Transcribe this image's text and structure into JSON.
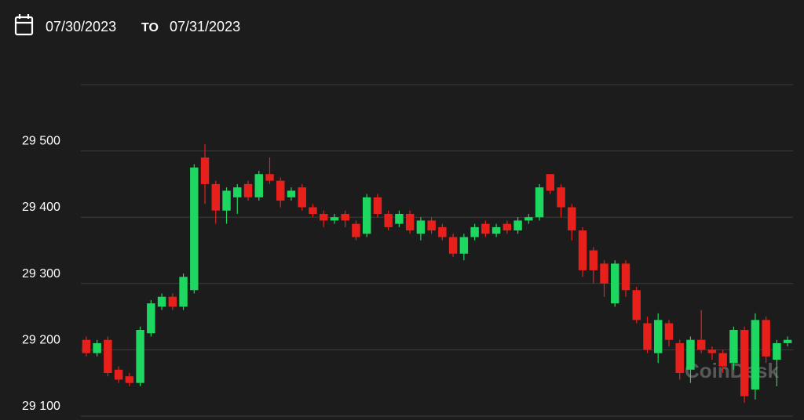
{
  "date_range": {
    "from": "07/30/2023",
    "separator": "TO",
    "to": "07/31/2023"
  },
  "chart_data": {
    "type": "candlestick",
    "watermark": "CoinDesk",
    "up_color": "#1ed760",
    "down_color": "#e8201c",
    "ylim": [
      29100,
      29600
    ],
    "yticks": [
      {
        "value": 29100,
        "label": "29 100"
      },
      {
        "value": 29200,
        "label": "29 200"
      },
      {
        "value": 29300,
        "label": "29 300"
      },
      {
        "value": 29400,
        "label": "29 400"
      },
      {
        "value": 29500,
        "label": "29 500"
      }
    ],
    "grid": true,
    "open": [
      29215,
      29195,
      29215,
      29170,
      29160,
      29150,
      29225,
      29265,
      29280,
      29265,
      29290,
      29490,
      29450,
      29410,
      29430,
      29450,
      29430,
      29465,
      29455,
      29430,
      29445,
      29415,
      29405,
      29395,
      29405,
      29390,
      29375,
      29430,
      29405,
      29390,
      29405,
      29375,
      29395,
      29385,
      29370,
      29345,
      29370,
      29390,
      29375,
      29390,
      29380,
      29395,
      29400,
      29465,
      29445,
      29415,
      29380,
      29350,
      29330,
      29270,
      29330,
      29290,
      29240,
      29195,
      29240,
      29210,
      29170,
      29215,
      29200,
      29195,
      29180,
      29230,
      29140,
      29245,
      29185,
      29210
    ],
    "high": [
      29220,
      29215,
      29220,
      29175,
      29165,
      29235,
      29275,
      29285,
      29285,
      29315,
      29480,
      29510,
      29455,
      29445,
      29450,
      29455,
      29470,
      29490,
      29460,
      29445,
      29450,
      29420,
      29410,
      29405,
      29410,
      29395,
      29435,
      29435,
      29410,
      29410,
      29410,
      29400,
      29400,
      29390,
      29375,
      29375,
      29390,
      29395,
      29390,
      29395,
      29400,
      29405,
      29450,
      29465,
      29450,
      29420,
      29385,
      29355,
      29335,
      29335,
      29335,
      29295,
      29250,
      29255,
      29245,
      29215,
      29220,
      29260,
      29205,
      29200,
      29235,
      29235,
      29255,
      29250,
      29215,
      29220
    ],
    "low": [
      29190,
      29190,
      29160,
      29150,
      29145,
      29145,
      29220,
      29260,
      29260,
      29260,
      29285,
      29420,
      29390,
      29390,
      29405,
      29425,
      29425,
      29450,
      29415,
      29425,
      29410,
      29400,
      29385,
      29390,
      29385,
      29365,
      29370,
      29400,
      29380,
      29385,
      29375,
      29365,
      29375,
      29365,
      29340,
      29335,
      29365,
      29370,
      29370,
      29375,
      29375,
      29390,
      29395,
      29435,
      29400,
      29365,
      29310,
      29300,
      29280,
      29265,
      29280,
      29240,
      29195,
      29180,
      29205,
      29155,
      29150,
      29195,
      29185,
      29165,
      29170,
      29120,
      29125,
      29180,
      29145,
      29205
    ],
    "close": [
      29195,
      29210,
      29165,
      29155,
      29150,
      29230,
      29270,
      29280,
      29265,
      29310,
      29475,
      29450,
      29410,
      29440,
      29445,
      29430,
      29465,
      29455,
      29425,
      29440,
      29415,
      29405,
      29395,
      29400,
      29395,
      29370,
      29430,
      29405,
      29385,
      29405,
      29380,
      29395,
      29380,
      29370,
      29345,
      29370,
      29385,
      29375,
      29385,
      29380,
      29395,
      29400,
      29445,
      29440,
      29415,
      29380,
      29320,
      29320,
      29300,
      29330,
      29290,
      29245,
      29200,
      29245,
      29215,
      29165,
      29215,
      29200,
      29195,
      29175,
      29230,
      29130,
      29245,
      29190,
      29210,
      29215
    ]
  }
}
